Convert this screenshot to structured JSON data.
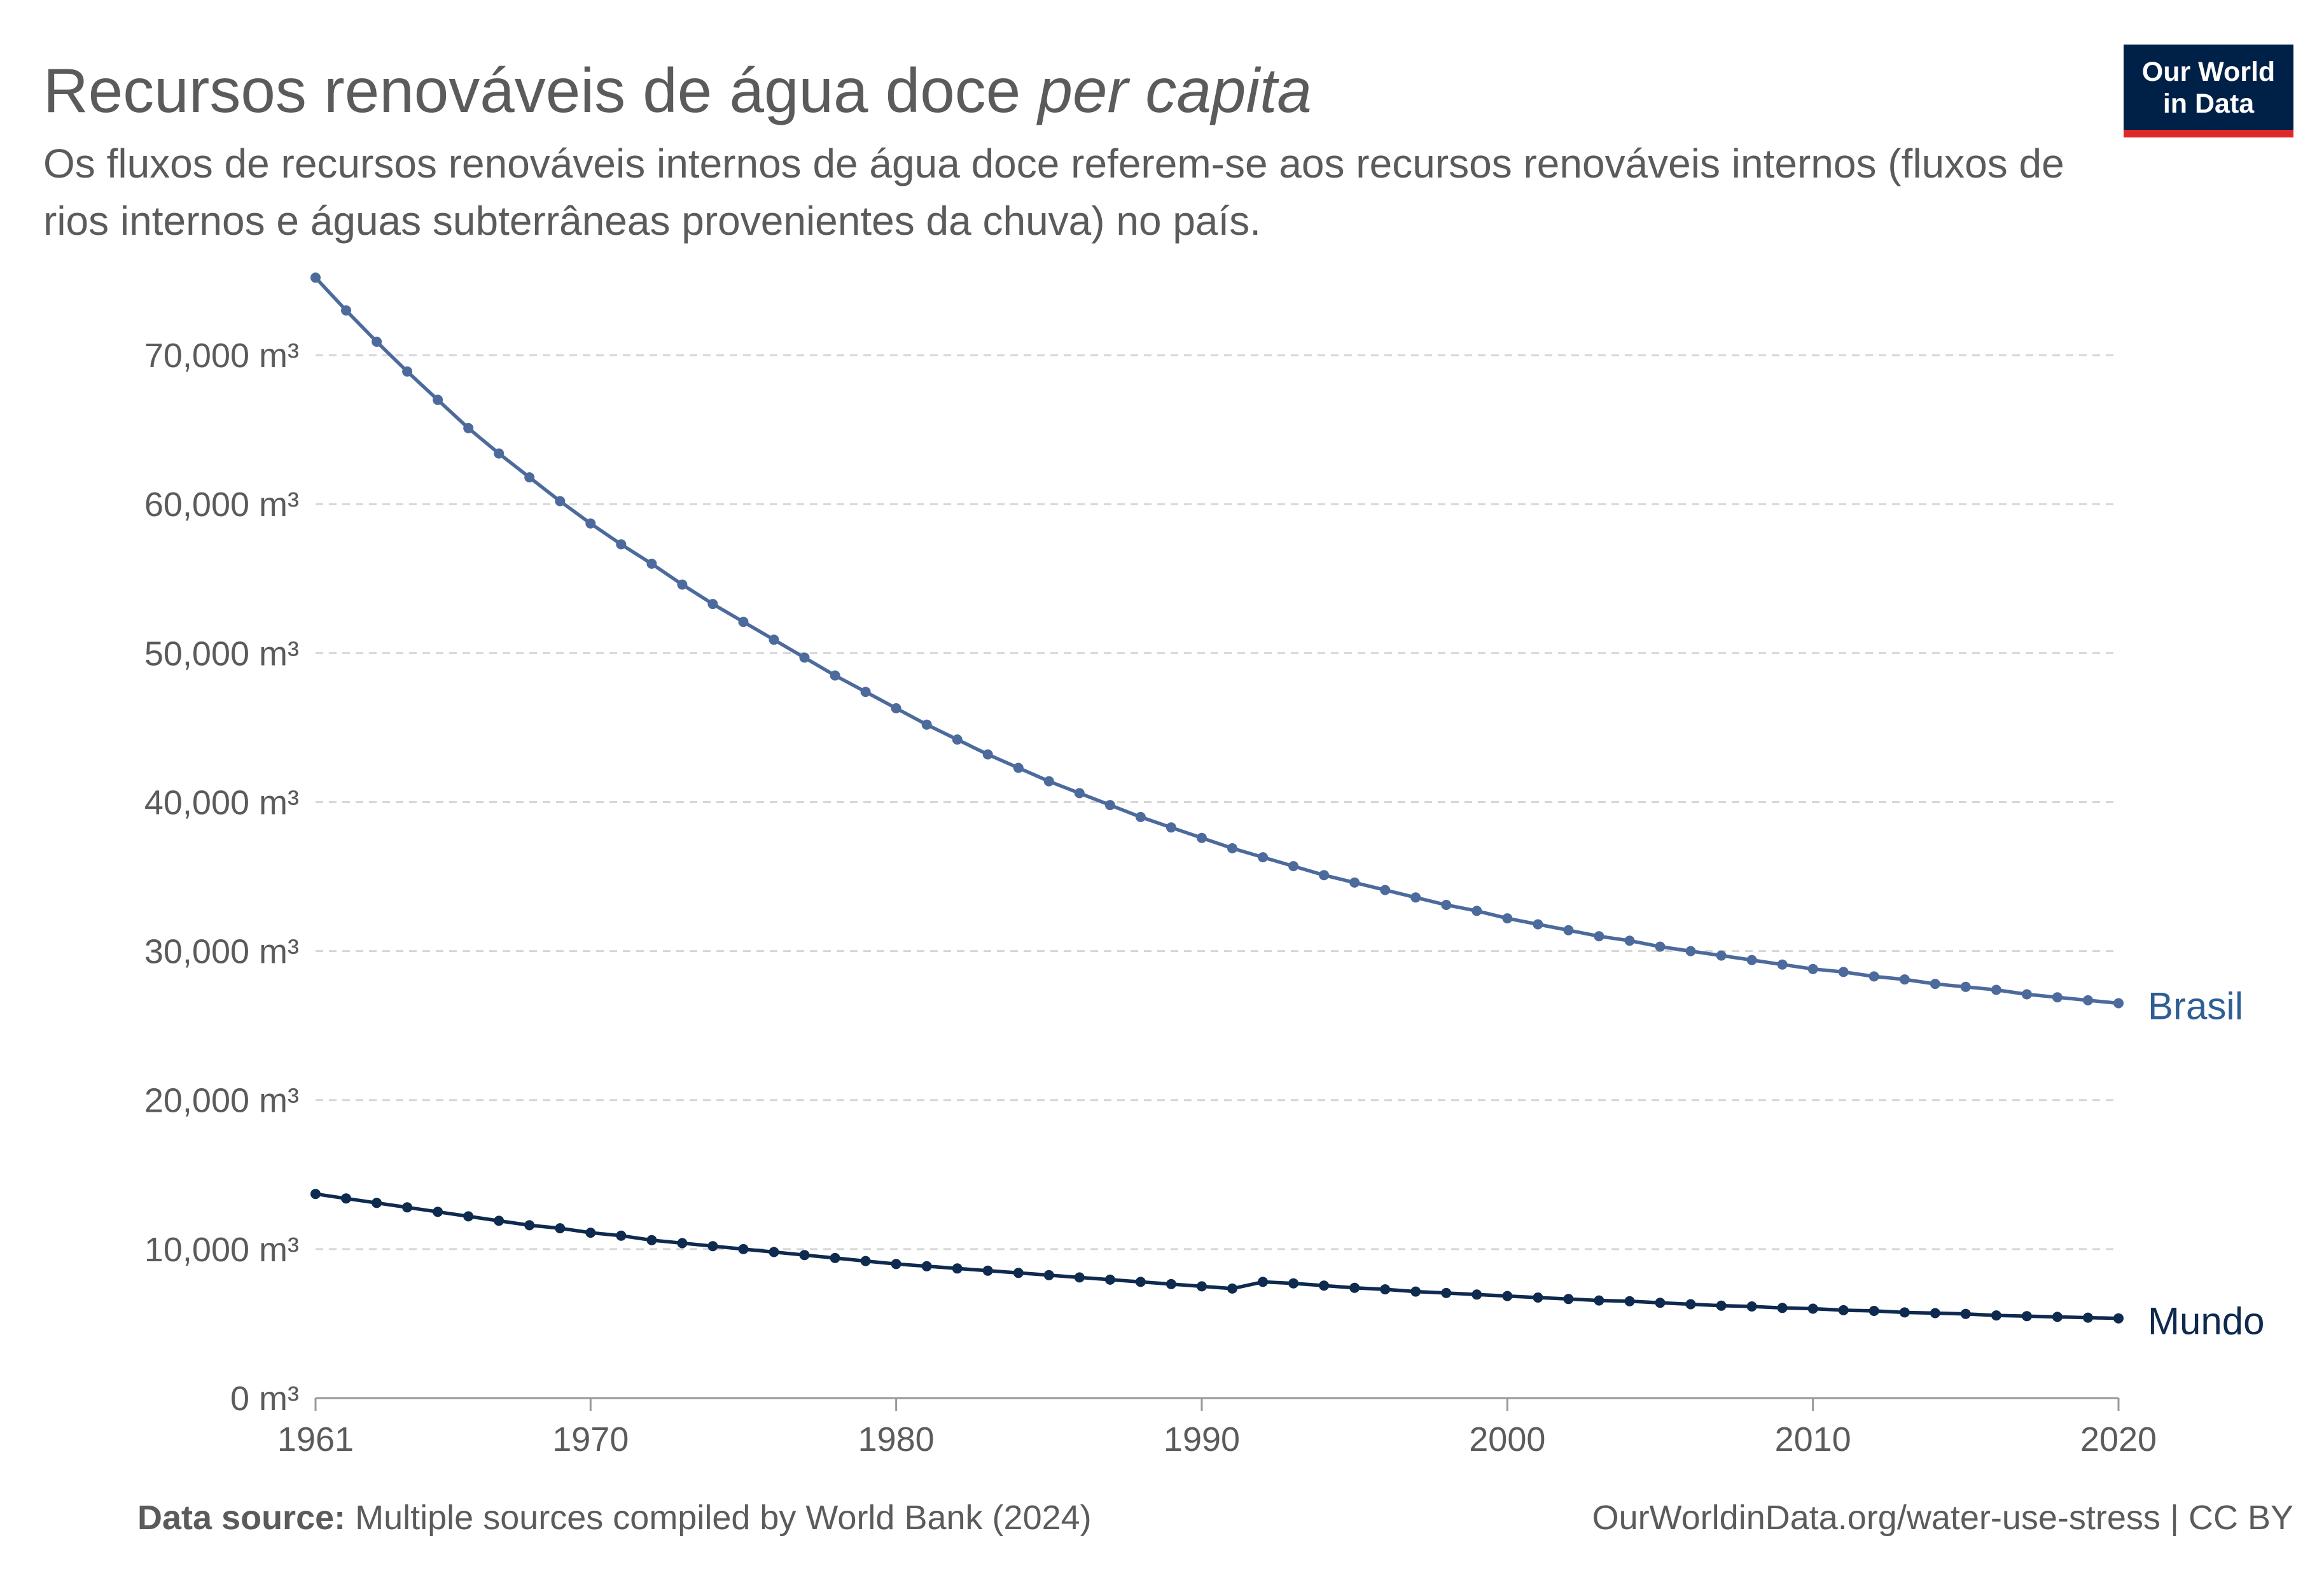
{
  "header": {
    "title_main": "Recursos renováveis de água doce ",
    "title_italic": "per capita",
    "subtitle": "Os fluxos de recursos renováveis internos de água doce referem-se aos recursos renováveis internos (fluxos de rios internos e águas subterrâneas provenientes da chuva) no país."
  },
  "logo": {
    "line1": "Our World",
    "line2": "in Data",
    "bg_color": "#002147",
    "accent_color": "#dc2a2a"
  },
  "footer": {
    "source_label": "Data source:",
    "source_text": " Multiple sources compiled by World Bank (2024)",
    "url_license": "OurWorldinData.org/water-use-stress | CC BY"
  },
  "chart_data": {
    "type": "line",
    "ylim": [
      0,
      75000
    ],
    "xlim": [
      1961,
      2020
    ],
    "y_ticks": [
      0,
      10000,
      20000,
      30000,
      40000,
      50000,
      60000,
      70000
    ],
    "y_tick_labels": [
      "0 m³",
      "10,000 m³",
      "20,000 m³",
      "30,000 m³",
      "40,000 m³",
      "50,000 m³",
      "60,000 m³",
      "70,000 m³"
    ],
    "x_ticks": [
      1961,
      1970,
      1980,
      1990,
      2000,
      2010,
      2020
    ],
    "x_tick_labels": [
      "1961",
      "1970",
      "1980",
      "1990",
      "2000",
      "2010",
      "2020"
    ],
    "grid": true,
    "legend": "inline-right",
    "x": [
      1961,
      1962,
      1963,
      1964,
      1965,
      1966,
      1967,
      1968,
      1969,
      1970,
      1971,
      1972,
      1973,
      1974,
      1975,
      1976,
      1977,
      1978,
      1979,
      1980,
      1981,
      1982,
      1983,
      1984,
      1985,
      1986,
      1987,
      1988,
      1989,
      1990,
      1991,
      1992,
      1993,
      1994,
      1995,
      1996,
      1997,
      1998,
      1999,
      2000,
      2001,
      2002,
      2003,
      2004,
      2005,
      2006,
      2007,
      2008,
      2009,
      2010,
      2011,
      2012,
      2013,
      2014,
      2015,
      2016,
      2017,
      2018,
      2019,
      2020
    ],
    "series": [
      {
        "name": "Brasil",
        "color": "#4c6a9c",
        "label_color": "#2f5e93",
        "values": [
          75200,
          73000,
          70900,
          68900,
          67000,
          65100,
          63400,
          61800,
          60200,
          58700,
          57300,
          56000,
          54600,
          53300,
          52100,
          50900,
          49700,
          48500,
          47400,
          46300,
          45200,
          44200,
          43200,
          42300,
          41400,
          40600,
          39800,
          39000,
          38300,
          37600,
          36900,
          36300,
          35700,
          35100,
          34600,
          34100,
          33600,
          33100,
          32700,
          32200,
          31800,
          31400,
          31000,
          30700,
          30300,
          30000,
          29700,
          29400,
          29100,
          28800,
          28600,
          28300,
          28100,
          27800,
          27600,
          27400,
          27100,
          26900,
          26700,
          26500
        ]
      },
      {
        "name": "Mundo",
        "color": "#0e2a4f",
        "label_color": "#0e2a4f",
        "values": [
          13700,
          13400,
          13100,
          12800,
          12500,
          12200,
          11900,
          11600,
          11400,
          11100,
          10900,
          10600,
          10400,
          10200,
          10000,
          9800,
          9600,
          9400,
          9200,
          9000,
          8850,
          8700,
          8550,
          8400,
          8250,
          8100,
          7950,
          7800,
          7650,
          7500,
          7350,
          7800,
          7700,
          7550,
          7400,
          7300,
          7150,
          7050,
          6950,
          6850,
          6750,
          6650,
          6550,
          6500,
          6400,
          6300,
          6200,
          6150,
          6050,
          6000,
          5900,
          5850,
          5750,
          5700,
          5650,
          5550,
          5500,
          5450,
          5400,
          5350
        ]
      }
    ]
  }
}
